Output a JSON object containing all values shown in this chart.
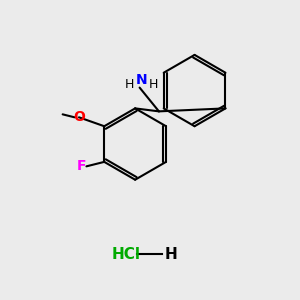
{
  "background_color": "#EBEBEB",
  "bond_color": "#000000",
  "bond_width": 1.5,
  "atom_colors": {
    "N": "#0000FF",
    "O": "#FF0000",
    "F": "#FF00FF",
    "Cl": "#00AA00",
    "H": "#000000",
    "C": "#000000"
  },
  "font_size": 9,
  "hcl_font_size": 11
}
